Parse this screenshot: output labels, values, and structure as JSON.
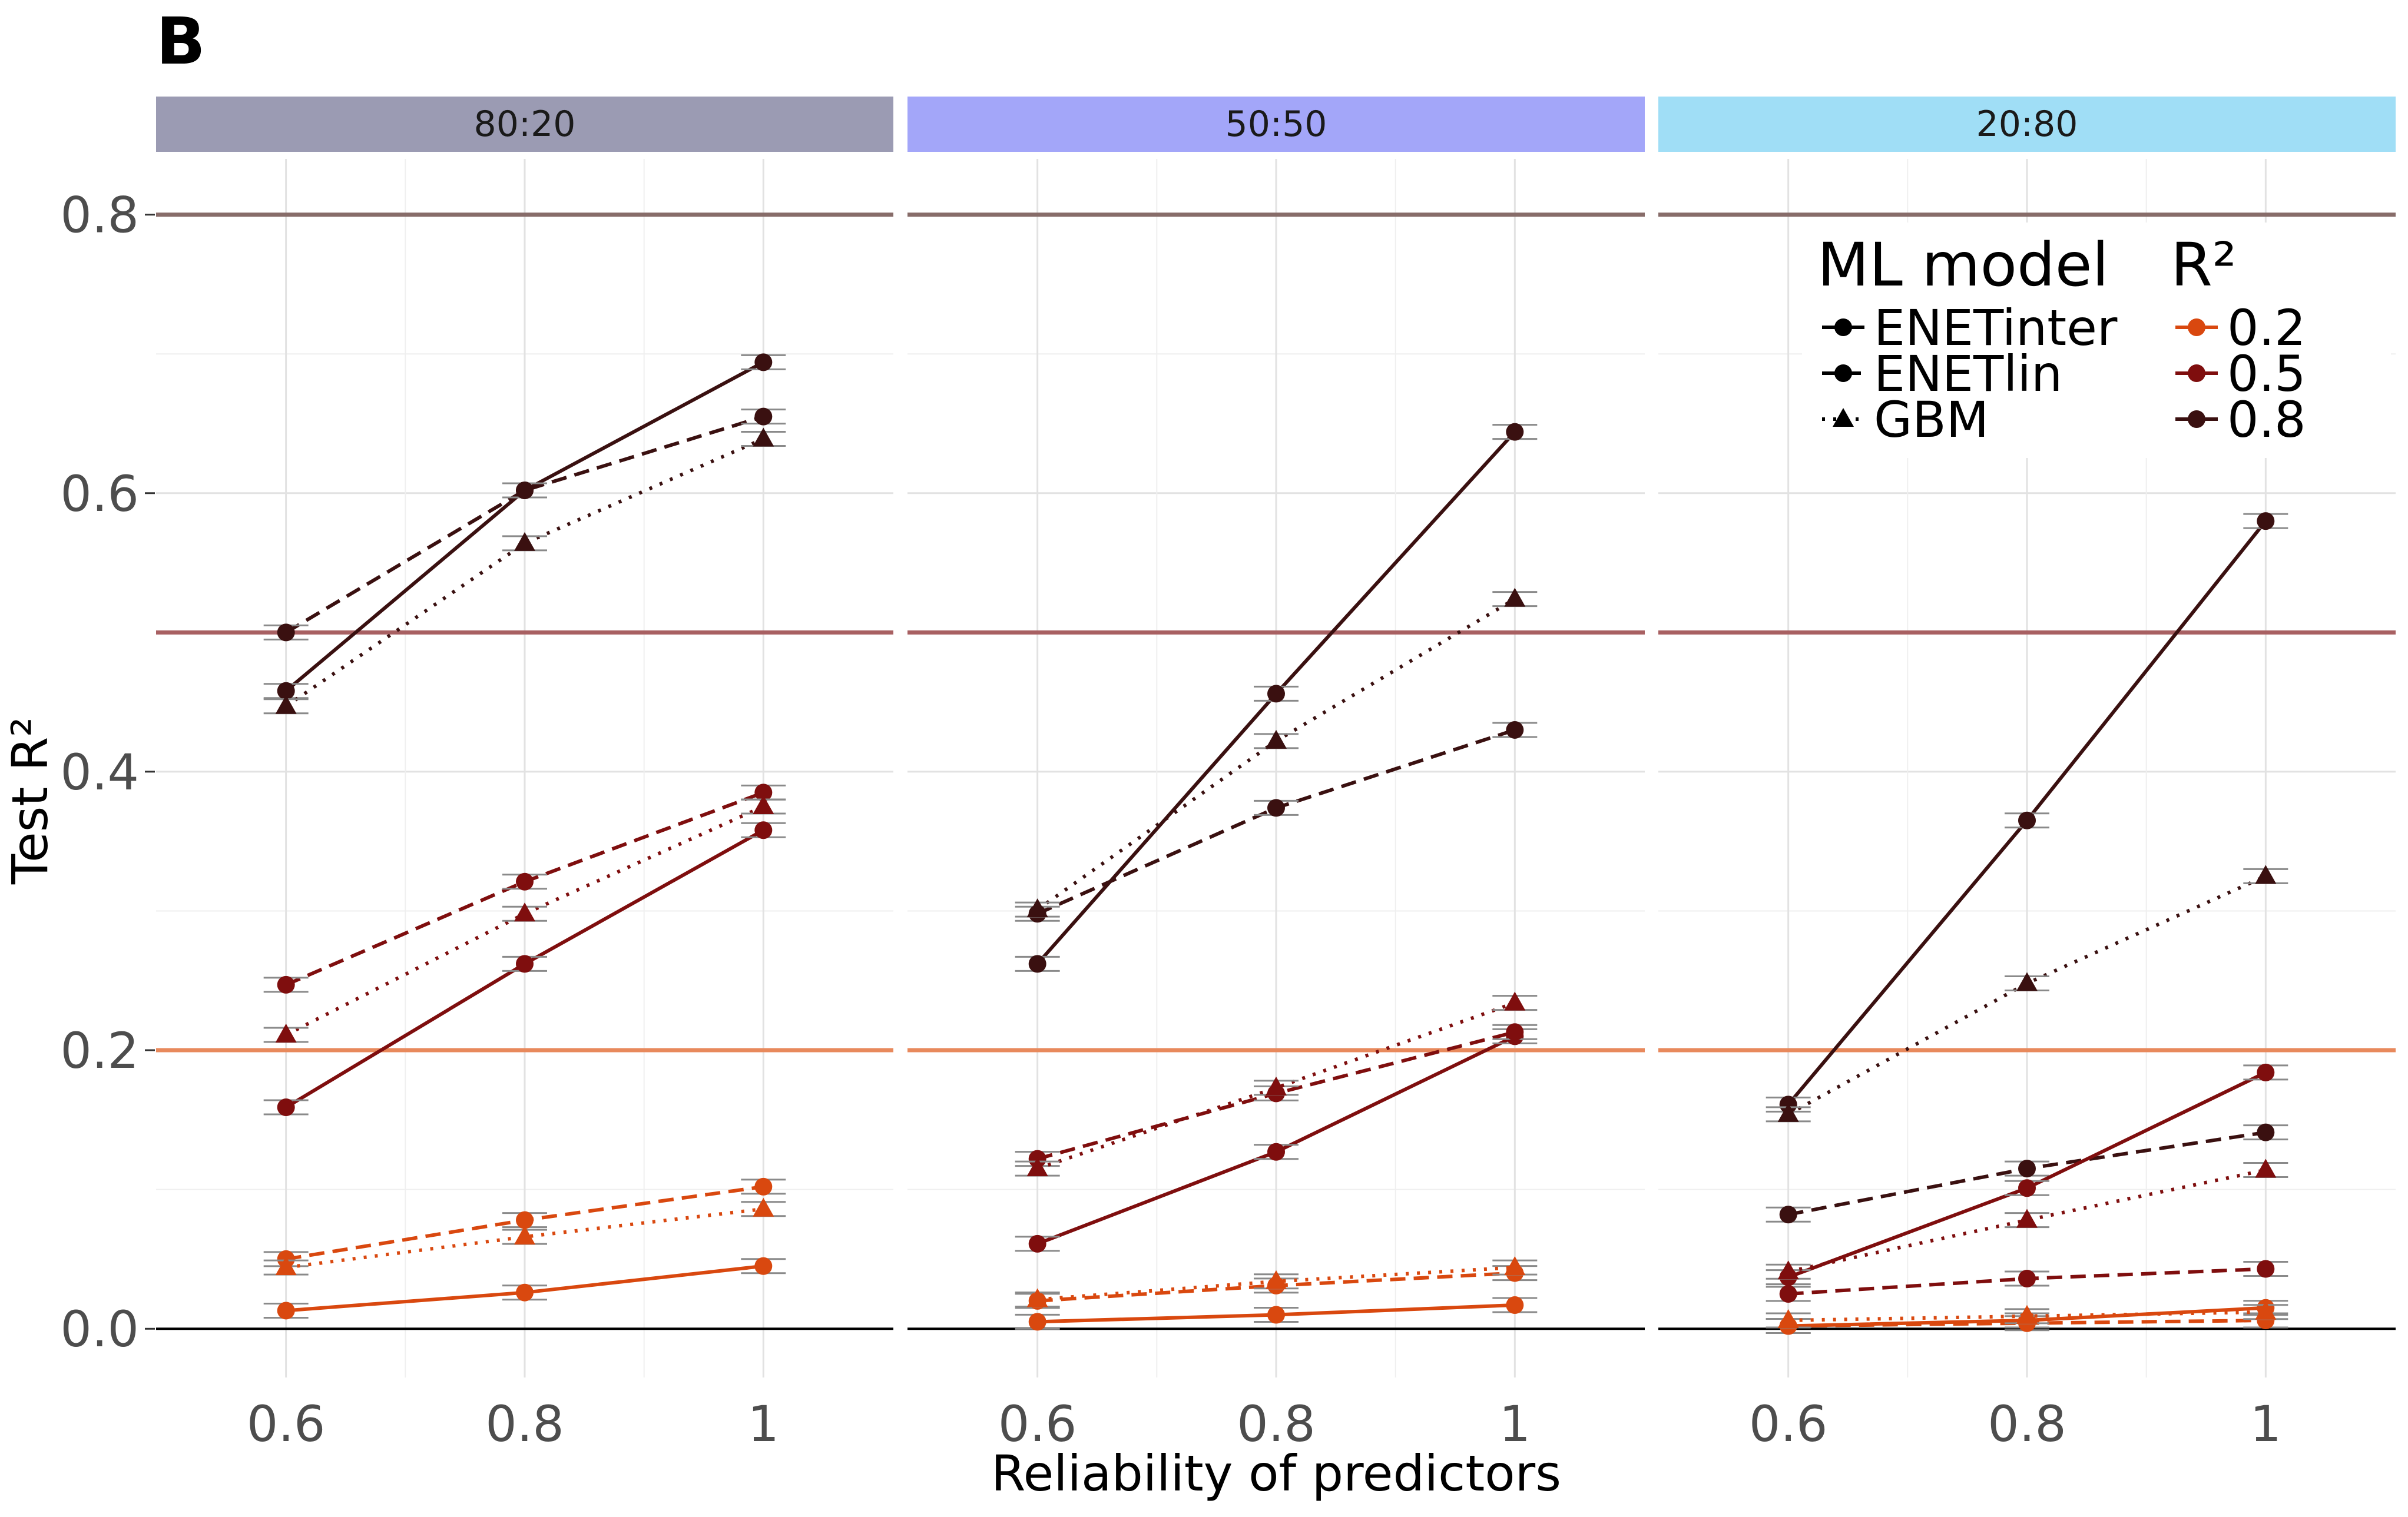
{
  "figure": {
    "tag": "B"
  },
  "chart_data": {
    "type": "line",
    "ylabel": "Test R²",
    "xlabel": "Reliability of predictors",
    "x": [
      0.6,
      0.8,
      1
    ],
    "x_tick_labels": [
      "0.6",
      "0.8",
      "1"
    ],
    "ylim": [
      -0.035,
      0.84
    ],
    "y_ticks": [
      0.0,
      0.2,
      0.4,
      0.6,
      0.8
    ],
    "y_tick_labels": [
      "0.0",
      "0.2",
      "0.4",
      "0.6",
      "0.8"
    ],
    "grid": true,
    "legend_position": "top-right",
    "reference_lines": [
      {
        "r2": "0.2",
        "y": 0.2,
        "color": "#E8895C"
      },
      {
        "r2": "0.5",
        "y": 0.5,
        "color": "#A86062"
      },
      {
        "r2": "0.8",
        "y": 0.8,
        "color": "#876C69"
      }
    ],
    "zero_line": {
      "y": 0.0,
      "color": "#000000"
    },
    "legends": {
      "model": {
        "title": "ML model",
        "entries": [
          {
            "label": "ENETinter",
            "linetype": "solid",
            "shape": "circle"
          },
          {
            "label": "ENETlin",
            "linetype": "dashed",
            "shape": "circle"
          },
          {
            "label": "GBM",
            "linetype": "dotted",
            "shape": "triangle"
          }
        ]
      },
      "r2": {
        "title": "R²",
        "entries": [
          {
            "label": "0.2",
            "color": "#D9480F"
          },
          {
            "label": "0.5",
            "color": "#7F0E0E"
          },
          {
            "label": "0.8",
            "color": "#3A1010"
          }
        ]
      }
    },
    "panels": [
      {
        "label": "80:20",
        "strip_color": "#9B9BB3",
        "series": [
          {
            "model": "ENETinter",
            "r2": "0.8",
            "values": [
              0.458,
              0.602,
              0.694
            ]
          },
          {
            "model": "ENETlin",
            "r2": "0.8",
            "values": [
              0.5,
              0.602,
              0.655
            ]
          },
          {
            "model": "GBM",
            "r2": "0.8",
            "values": [
              0.447,
              0.564,
              0.639
            ]
          },
          {
            "model": "ENETinter",
            "r2": "0.5",
            "values": [
              0.159,
              0.262,
              0.358
            ]
          },
          {
            "model": "ENETlin",
            "r2": "0.5",
            "values": [
              0.247,
              0.321,
              0.385
            ]
          },
          {
            "model": "GBM",
            "r2": "0.5",
            "values": [
              0.211,
              0.298,
              0.375
            ]
          },
          {
            "model": "ENETinter",
            "r2": "0.2",
            "values": [
              0.013,
              0.026,
              0.045
            ]
          },
          {
            "model": "ENETlin",
            "r2": "0.2",
            "values": [
              0.05,
              0.078,
              0.102
            ]
          },
          {
            "model": "GBM",
            "r2": "0.2",
            "values": [
              0.044,
              0.066,
              0.086
            ]
          }
        ]
      },
      {
        "label": "50:50",
        "strip_color": "#A3A6F9",
        "series": [
          {
            "model": "ENETinter",
            "r2": "0.8",
            "values": [
              0.262,
              0.456,
              0.644
            ]
          },
          {
            "model": "ENETlin",
            "r2": "0.8",
            "values": [
              0.298,
              0.374,
              0.43
            ]
          },
          {
            "model": "GBM",
            "r2": "0.8",
            "values": [
              0.301,
              0.422,
              0.524
            ]
          },
          {
            "model": "ENETinter",
            "r2": "0.5",
            "values": [
              0.061,
              0.127,
              0.21
            ]
          },
          {
            "model": "ENETlin",
            "r2": "0.5",
            "values": [
              0.122,
              0.169,
              0.213
            ]
          },
          {
            "model": "GBM",
            "r2": "0.5",
            "values": [
              0.115,
              0.173,
              0.234
            ]
          },
          {
            "model": "ENETinter",
            "r2": "0.2",
            "values": [
              0.005,
              0.01,
              0.017
            ]
          },
          {
            "model": "ENETlin",
            "r2": "0.2",
            "values": [
              0.02,
              0.031,
              0.04
            ]
          },
          {
            "model": "GBM",
            "r2": "0.2",
            "values": [
              0.021,
              0.034,
              0.044
            ]
          }
        ]
      },
      {
        "label": "20:80",
        "strip_color": "#A0DEF6",
        "series": [
          {
            "model": "ENETinter",
            "r2": "0.8",
            "values": [
              0.161,
              0.365,
              0.58
            ]
          },
          {
            "model": "ENETlin",
            "r2": "0.8",
            "values": [
              0.082,
              0.115,
              0.141
            ]
          },
          {
            "model": "GBM",
            "r2": "0.8",
            "values": [
              0.154,
              0.248,
              0.325
            ]
          },
          {
            "model": "ENETinter",
            "r2": "0.5",
            "values": [
              0.037,
              0.101,
              0.184
            ]
          },
          {
            "model": "ENETlin",
            "r2": "0.5",
            "values": [
              0.025,
              0.036,
              0.043
            ]
          },
          {
            "model": "GBM",
            "r2": "0.5",
            "values": [
              0.041,
              0.078,
              0.114
            ]
          },
          {
            "model": "ENETinter",
            "r2": "0.2",
            "values": [
              0.002,
              0.006,
              0.015
            ]
          },
          {
            "model": "ENETlin",
            "r2": "0.2",
            "values": [
              0.002,
              0.004,
              0.006
            ]
          },
          {
            "model": "GBM",
            "r2": "0.2",
            "values": [
              0.006,
              0.009,
              0.012
            ]
          }
        ]
      }
    ]
  }
}
